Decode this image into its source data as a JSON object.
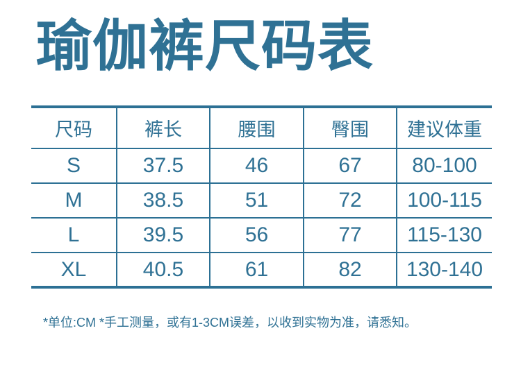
{
  "page": {
    "title": "瑜伽裤尺码表",
    "footnote": "*单位:CM *手工测量，或有1-3CM误差，以收到实物为准，请悉知。"
  },
  "colors": {
    "accent": "#2F7194",
    "table_line": "#2C7094",
    "background": "#FFFFFF"
  },
  "chart_data": {
    "type": "table",
    "title": "瑜伽裤尺码表",
    "columns": [
      "尺码",
      "裤长",
      "腰围",
      "臀围",
      "建议体重"
    ],
    "rows": [
      [
        "S",
        "37.5",
        "46",
        "67",
        "80-100"
      ],
      [
        "M",
        "38.5",
        "51",
        "72",
        "100-115"
      ],
      [
        "L",
        "39.5",
        "56",
        "77",
        "115-130"
      ],
      [
        "XL",
        "40.5",
        "61",
        "82",
        "130-140"
      ]
    ],
    "footnote": "*单位:CM *手工测量，或有1-3CM误差，以收到实物为准，请悉知。",
    "unit_note": "CM",
    "layout": "header row + 4 size rows; thick outer top/bottom rules, thin inner rules, internal column dividers only"
  }
}
